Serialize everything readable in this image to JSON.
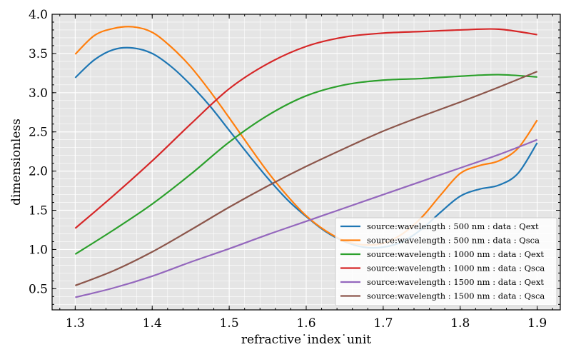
{
  "chart_data": {
    "type": "line",
    "title": "",
    "xlabel": "refractive˙index˙unit",
    "ylabel": "dimensionless",
    "xlim": [
      1.27,
      1.93
    ],
    "ylim": [
      0.23,
      4.0
    ],
    "xticks": [
      1.3,
      1.4,
      1.5,
      1.6,
      1.7,
      1.8,
      1.9
    ],
    "xtick_labels": [
      "1.3",
      "1.4",
      "1.5",
      "1.6",
      "1.7",
      "1.8",
      "1.9"
    ],
    "yticks": [
      0.5,
      1.0,
      1.5,
      2.0,
      2.5,
      3.0,
      3.5,
      4.0
    ],
    "ytick_labels": [
      "0.5",
      "1.0",
      "1.5",
      "2.0",
      "2.5",
      "3.0",
      "3.5",
      "4.0"
    ],
    "grid": true,
    "legend_position": "bottom-right",
    "series": [
      {
        "name": "source:wavelength : 500 nm : data : Qext",
        "color": "#1f77b4",
        "x": [
          1.3,
          1.325,
          1.35,
          1.375,
          1.4,
          1.425,
          1.45,
          1.475,
          1.5,
          1.525,
          1.55,
          1.575,
          1.6,
          1.625,
          1.65,
          1.675,
          1.7,
          1.725,
          1.75,
          1.775,
          1.8,
          1.825,
          1.85,
          1.875,
          1.9
        ],
        "y": [
          3.19,
          3.42,
          3.55,
          3.57,
          3.5,
          3.33,
          3.1,
          2.83,
          2.52,
          2.21,
          1.91,
          1.64,
          1.42,
          1.23,
          1.1,
          1.03,
          1.03,
          1.1,
          1.26,
          1.48,
          1.68,
          1.77,
          1.82,
          1.97,
          2.36
        ]
      },
      {
        "name": "source:wavelength : 500 nm : data : Qsca",
        "color": "#ff7f0e",
        "x": [
          1.3,
          1.325,
          1.35,
          1.375,
          1.4,
          1.425,
          1.45,
          1.475,
          1.5,
          1.525,
          1.55,
          1.575,
          1.6,
          1.625,
          1.65,
          1.675,
          1.7,
          1.725,
          1.75,
          1.775,
          1.8,
          1.825,
          1.85,
          1.875,
          1.9
        ],
        "y": [
          3.49,
          3.73,
          3.82,
          3.84,
          3.77,
          3.58,
          3.33,
          3.02,
          2.68,
          2.33,
          1.99,
          1.69,
          1.43,
          1.24,
          1.11,
          1.06,
          1.08,
          1.2,
          1.41,
          1.7,
          1.97,
          2.07,
          2.13,
          2.29,
          2.65
        ]
      },
      {
        "name": "source:wavelength : 1000 nm : data : Qext",
        "color": "#2ca02c",
        "x": [
          1.3,
          1.35,
          1.4,
          1.45,
          1.5,
          1.55,
          1.6,
          1.65,
          1.7,
          1.75,
          1.8,
          1.85,
          1.9
        ],
        "y": [
          0.94,
          1.25,
          1.58,
          1.96,
          2.37,
          2.71,
          2.96,
          3.1,
          3.16,
          3.18,
          3.21,
          3.23,
          3.2
        ]
      },
      {
        "name": "source:wavelength : 1000 nm : data : Qsca",
        "color": "#d62728",
        "x": [
          1.3,
          1.35,
          1.4,
          1.45,
          1.5,
          1.55,
          1.6,
          1.65,
          1.7,
          1.75,
          1.8,
          1.85,
          1.9
        ],
        "y": [
          1.27,
          1.69,
          2.13,
          2.6,
          3.05,
          3.37,
          3.59,
          3.71,
          3.76,
          3.78,
          3.8,
          3.81,
          3.74
        ]
      },
      {
        "name": "source:wavelength : 1500 nm : data : Qext",
        "color": "#9467bd",
        "x": [
          1.3,
          1.35,
          1.4,
          1.45,
          1.5,
          1.55,
          1.6,
          1.65,
          1.7,
          1.75,
          1.8,
          1.85,
          1.9
        ],
        "y": [
          0.39,
          0.51,
          0.66,
          0.84,
          1.01,
          1.19,
          1.36,
          1.53,
          1.7,
          1.87,
          2.04,
          2.21,
          2.4
        ]
      },
      {
        "name": "source:wavelength : 1500 nm : data : Qsca",
        "color": "#8c564b",
        "x": [
          1.3,
          1.35,
          1.4,
          1.45,
          1.5,
          1.55,
          1.6,
          1.65,
          1.7,
          1.75,
          1.8,
          1.85,
          1.9
        ],
        "y": [
          0.54,
          0.73,
          0.97,
          1.25,
          1.54,
          1.81,
          2.06,
          2.29,
          2.51,
          2.7,
          2.88,
          3.07,
          3.27
        ]
      }
    ]
  }
}
